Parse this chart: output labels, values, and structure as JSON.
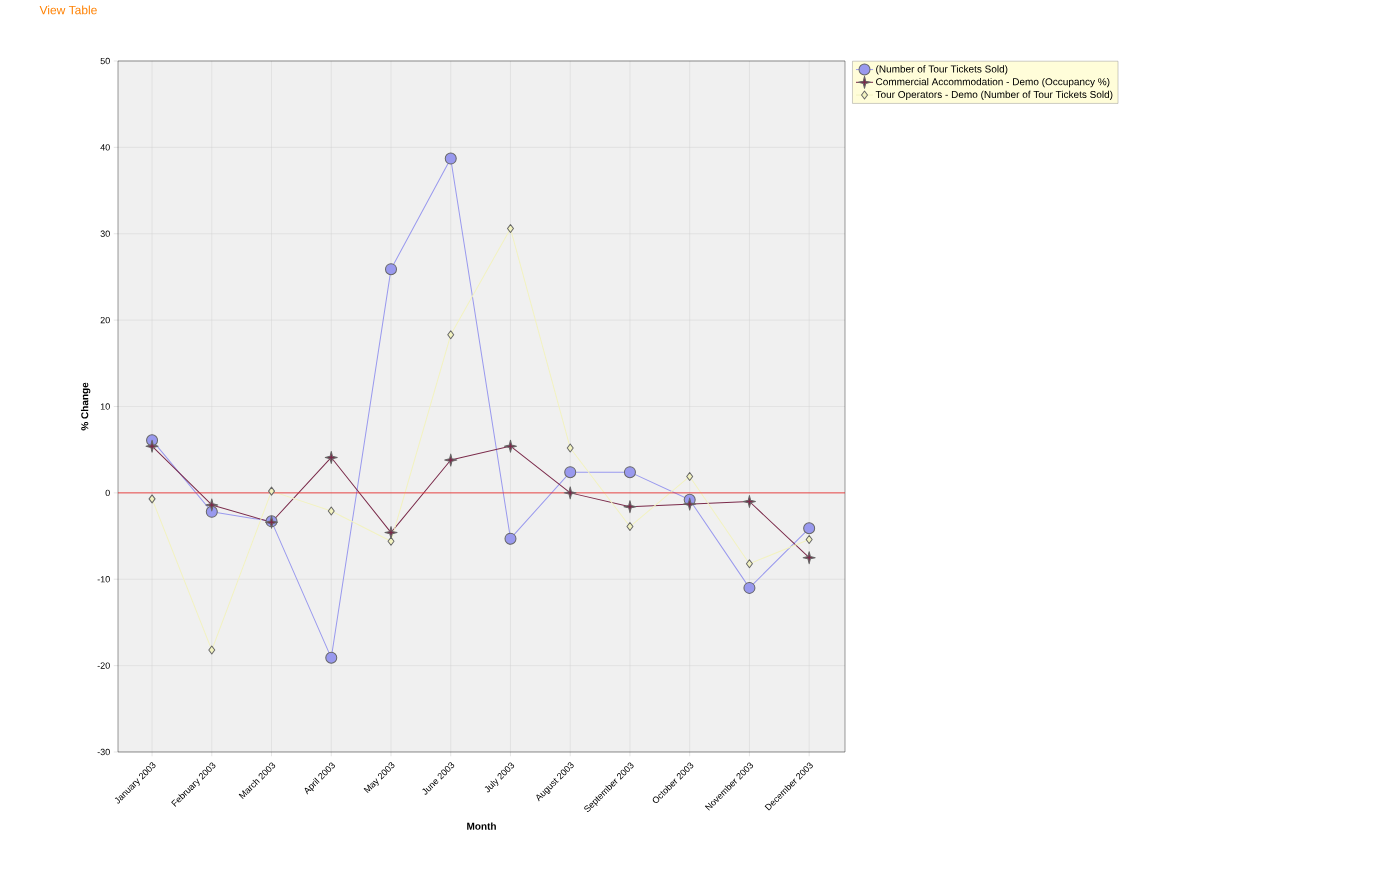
{
  "chart_data": {
    "type": "line",
    "xlabel": "Month",
    "ylabel": "% Change",
    "categories": [
      "January 2003",
      "February 2003",
      "March 2003",
      "April 2003",
      "May 2003",
      "June 2003",
      "July 2003",
      "August 2003",
      "September 2003",
      "October 2003",
      "November 2003",
      "December 2003"
    ],
    "series": [
      {
        "name": "(Number of Tour Tickets Sold)",
        "color": "#9999ee",
        "marker": "circle",
        "values": [
          6.1,
          -2.2,
          -3.3,
          -19.1,
          25.9,
          38.7,
          -5.3,
          2.4,
          2.4,
          -0.8,
          -11.0,
          -4.1
        ]
      },
      {
        "name": "Commercial Accommodation - Demo (Occupancy %)",
        "color": "#7a2a4a",
        "marker": "star",
        "values": [
          5.4,
          -1.4,
          -3.4,
          4.1,
          -4.6,
          3.8,
          5.4,
          0,
          -1.6,
          -1.3,
          -1.0,
          -7.5
        ]
      },
      {
        "name": "Tour Operators - Demo (Number of Tour Tickets Sold)",
        "color": "#f2f2c0",
        "marker": "diamond",
        "values": [
          -0.7,
          -18.2,
          0.2,
          -2.1,
          -5.6,
          18.3,
          30.6,
          5.2,
          -3.9,
          1.9,
          -8.2,
          -5.4
        ]
      }
    ],
    "ylim": [
      -30,
      50
    ],
    "yticks": [
      -30,
      -20,
      -10,
      0,
      10,
      20,
      30,
      40,
      50
    ],
    "grid": true,
    "legend": "top right",
    "ref_lines": [
      {
        "axis": "y",
        "value": 0,
        "color": "#ee2222"
      }
    ],
    "annotations": [
      "View Table"
    ]
  }
}
